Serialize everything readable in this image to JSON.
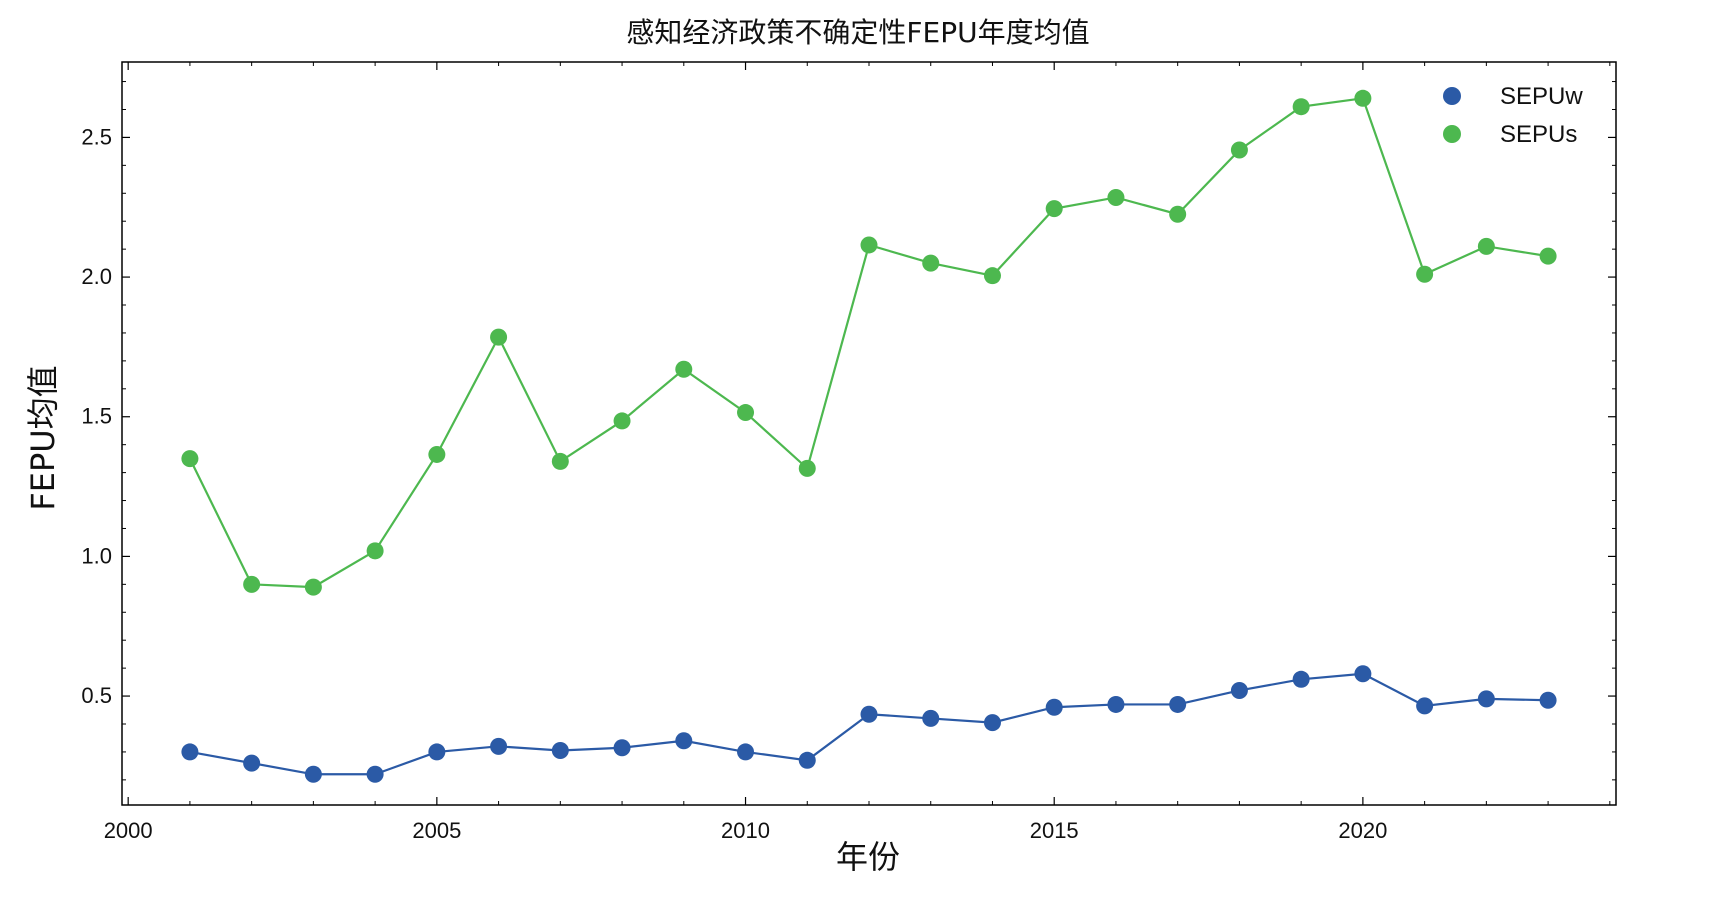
{
  "chart_data": {
    "type": "line",
    "title": "感知经济政策不确定性FEPU年度均值",
    "xlabel": "年份",
    "ylabel": "FEPU均值",
    "xlim": [
      1999.9,
      2024.1
    ],
    "ylim": [
      0.11,
      2.77
    ],
    "x_ticks": [
      2000,
      2005,
      2010,
      2015,
      2020
    ],
    "y_ticks": [
      0.5,
      1.0,
      1.5,
      2.0,
      2.5
    ],
    "x_tick_labels": [
      "2000",
      "2005",
      "2010",
      "2015",
      "2020"
    ],
    "y_tick_labels": [
      "0.5",
      "1.0",
      "1.5",
      "2.0",
      "2.5"
    ],
    "grid": false,
    "legend_position": "top-right",
    "x": [
      2001,
      2002,
      2003,
      2004,
      2005,
      2006,
      2007,
      2008,
      2009,
      2010,
      2011,
      2012,
      2013,
      2014,
      2015,
      2016,
      2017,
      2018,
      2019,
      2020,
      2021,
      2022,
      2023
    ],
    "series": [
      {
        "name": "SEPUw",
        "color": "#2b5aa6",
        "values": [
          0.3,
          0.26,
          0.22,
          0.22,
          0.3,
          0.32,
          0.305,
          0.315,
          0.34,
          0.3,
          0.27,
          0.435,
          0.42,
          0.405,
          0.46,
          0.47,
          0.47,
          0.52,
          0.56,
          0.58,
          0.465,
          0.49,
          0.485
        ]
      },
      {
        "name": "SEPUs",
        "color": "#4db84f",
        "values": [
          1.35,
          0.9,
          0.89,
          1.02,
          1.365,
          1.785,
          1.34,
          1.485,
          1.67,
          1.515,
          1.315,
          2.115,
          2.05,
          2.005,
          2.245,
          2.285,
          2.225,
          2.455,
          2.61,
          2.64,
          2.01,
          2.11,
          2.075
        ]
      }
    ]
  }
}
